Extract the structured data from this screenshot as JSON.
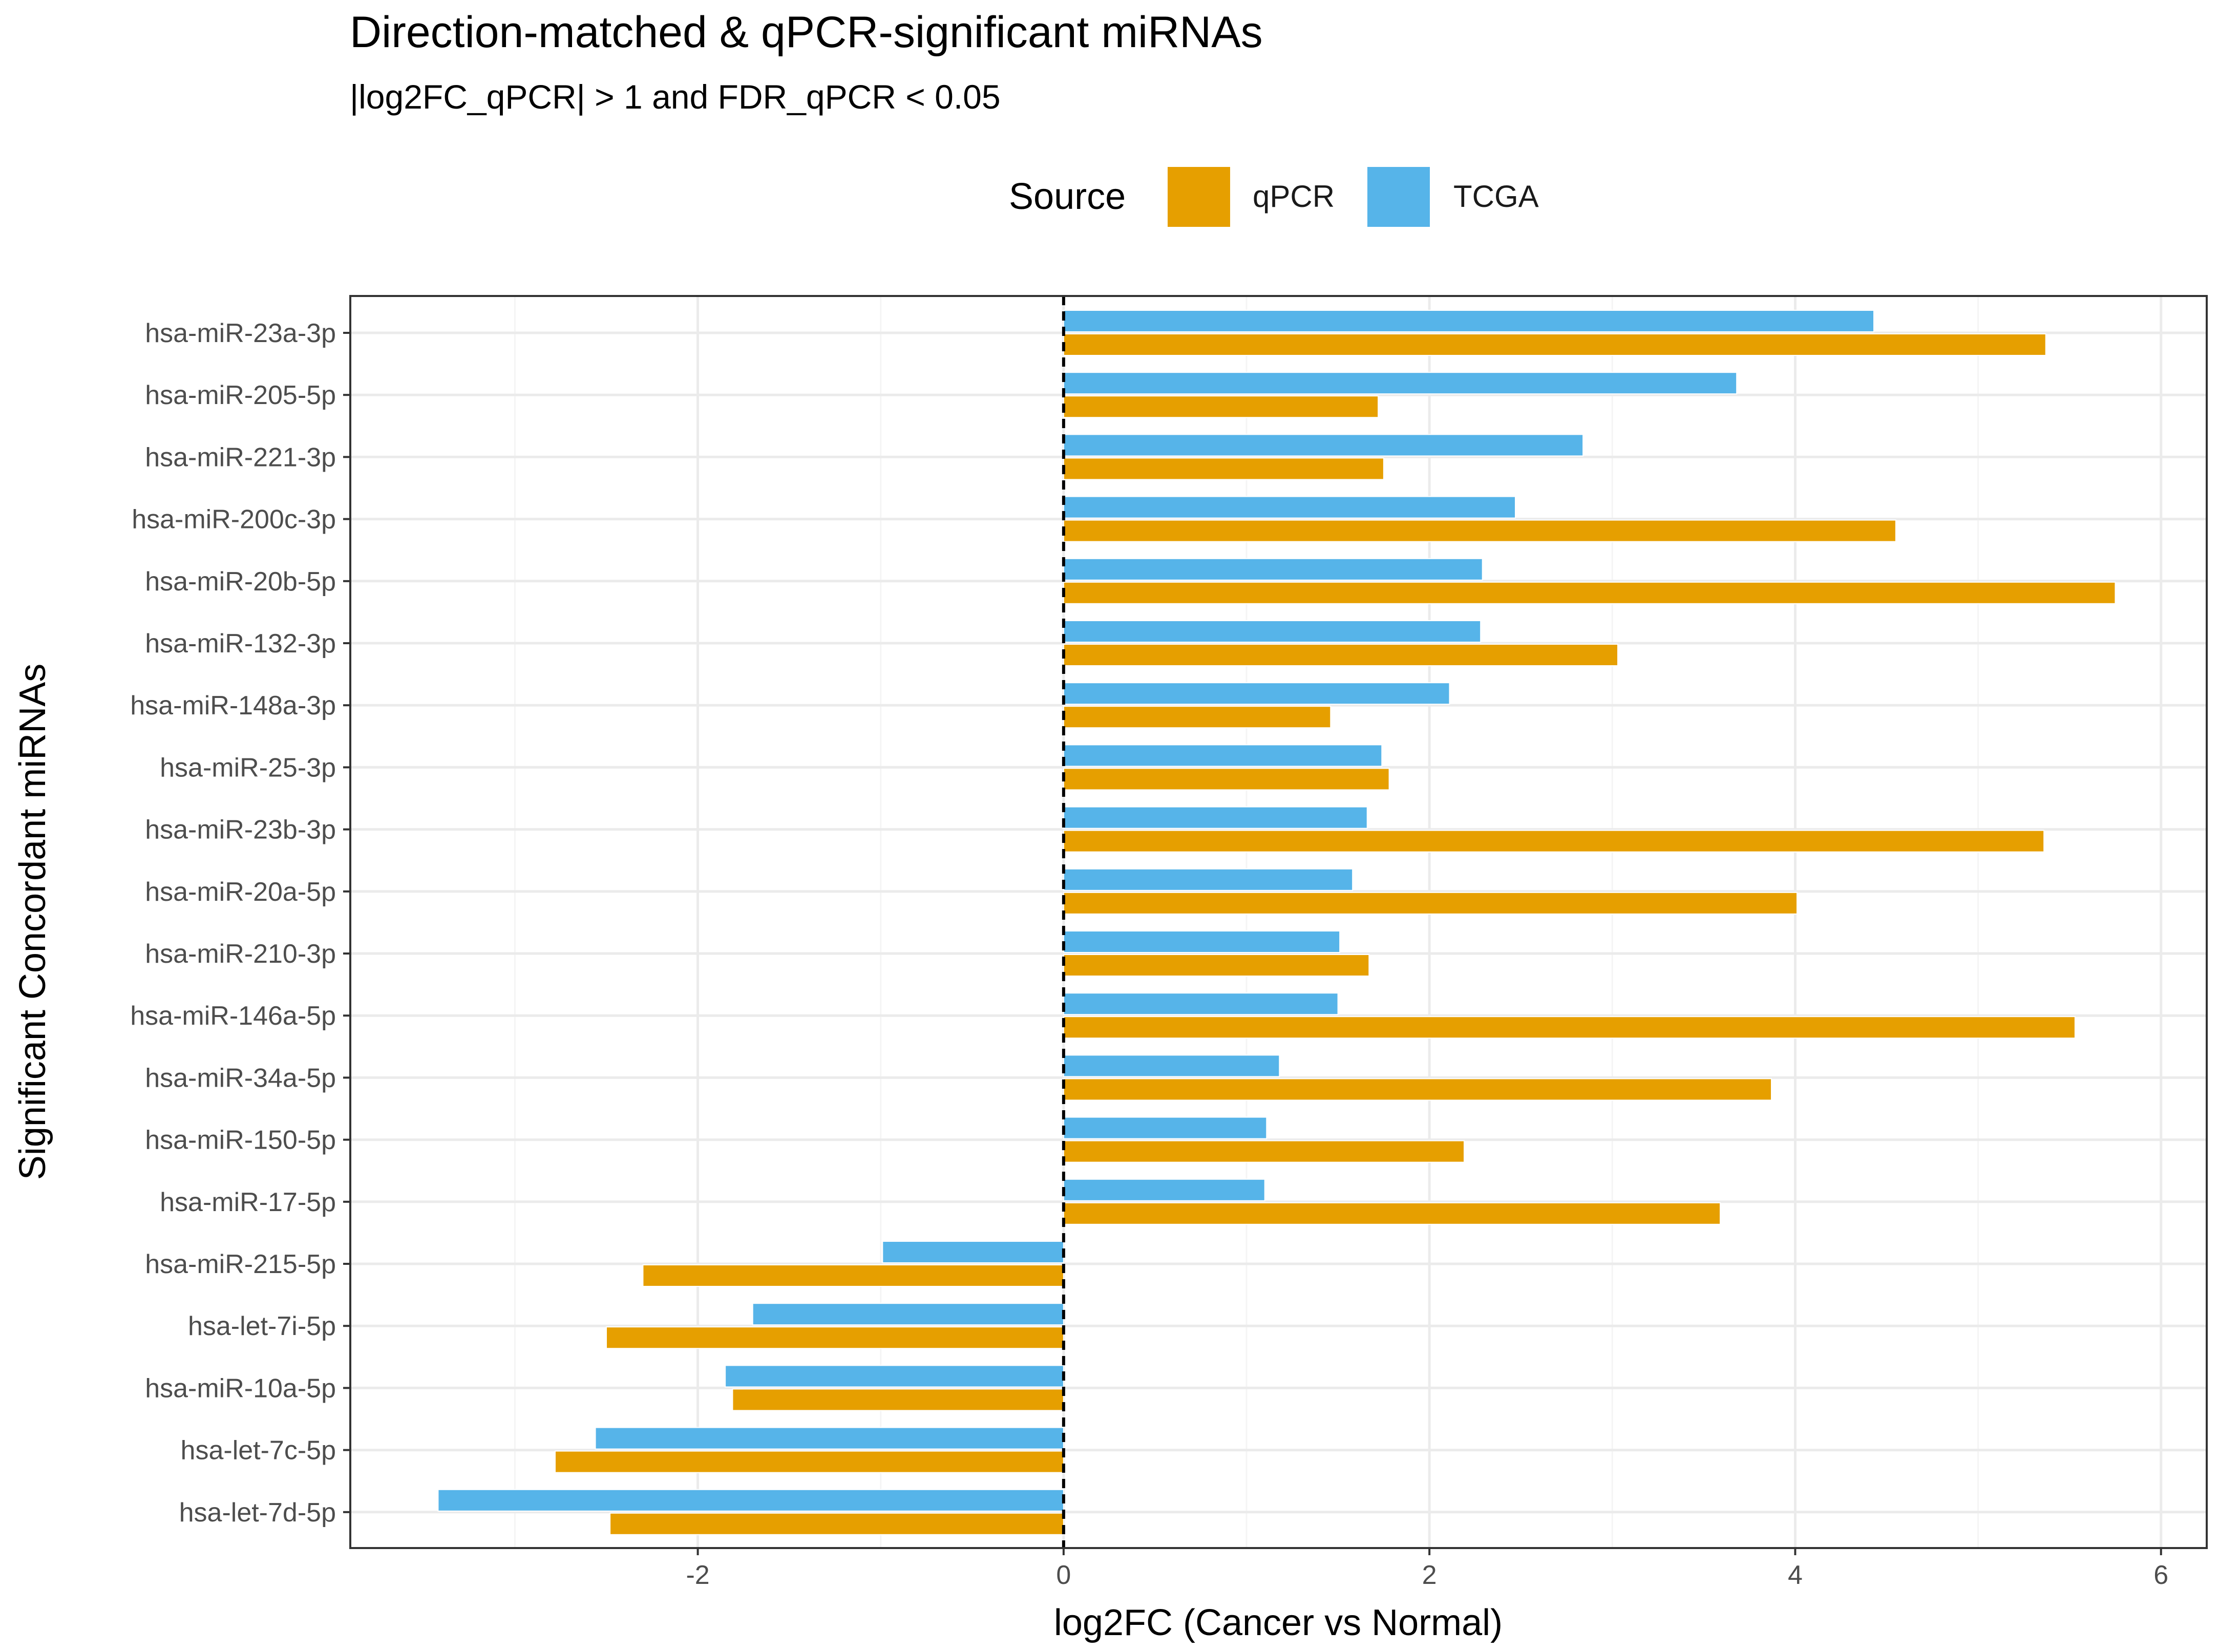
{
  "chart_data": {
    "type": "bar",
    "orientation": "horizontal",
    "title": "Direction-matched & qPCR-significant miRNAs",
    "subtitle": "|log2FC_qPCR| > 1 and FDR_qPCR < 0.05",
    "xlabel": "log2FC (Cancer vs Normal)",
    "ylabel": "Significant Concordant miRNAs",
    "xlim": [
      -3.9,
      6.25
    ],
    "xticks": [
      -2,
      0,
      2,
      4,
      6
    ],
    "xtick_labels": [
      "-2",
      "0",
      "2",
      "4",
      "6"
    ],
    "grid": true,
    "reference_line": 0,
    "legend": {
      "title": "Source",
      "position": "top",
      "entries": [
        {
          "name": "qPCR",
          "color": "#E69F00"
        },
        {
          "name": "TCGA",
          "color": "#56B4E9"
        }
      ]
    },
    "categories": [
      "hsa-miR-23a-3p",
      "hsa-miR-205-5p",
      "hsa-miR-221-3p",
      "hsa-miR-200c-3p",
      "hsa-miR-20b-5p",
      "hsa-miR-132-3p",
      "hsa-miR-148a-3p",
      "hsa-miR-25-3p",
      "hsa-miR-23b-3p",
      "hsa-miR-20a-5p",
      "hsa-miR-210-3p",
      "hsa-miR-146a-5p",
      "hsa-miR-34a-5p",
      "hsa-miR-150-5p",
      "hsa-miR-17-5p",
      "hsa-miR-215-5p",
      "hsa-let-7i-5p",
      "hsa-miR-10a-5p",
      "hsa-let-7c-5p",
      "hsa-let-7d-5p"
    ],
    "series": [
      {
        "name": "TCGA",
        "color": "#56B4E9",
        "values": [
          4.43,
          3.68,
          2.84,
          2.47,
          2.29,
          2.28,
          2.11,
          1.74,
          1.66,
          1.58,
          1.51,
          1.5,
          1.18,
          1.11,
          1.1,
          -0.99,
          -1.7,
          -1.85,
          -2.56,
          -3.42
        ]
      },
      {
        "name": "qPCR",
        "color": "#E69F00",
        "values": [
          5.37,
          1.72,
          1.75,
          4.55,
          5.75,
          3.03,
          1.46,
          1.78,
          5.36,
          4.01,
          1.67,
          5.53,
          3.87,
          2.19,
          3.59,
          -2.3,
          -2.5,
          -1.81,
          -2.78,
          -2.48
        ]
      }
    ]
  },
  "colors": {
    "panel_border": "#333333",
    "grid_major": "#EBEBEB",
    "grid_minor": "#F5F5F5",
    "tick_text": "#4D4D4D",
    "zero_line": "#000000"
  }
}
